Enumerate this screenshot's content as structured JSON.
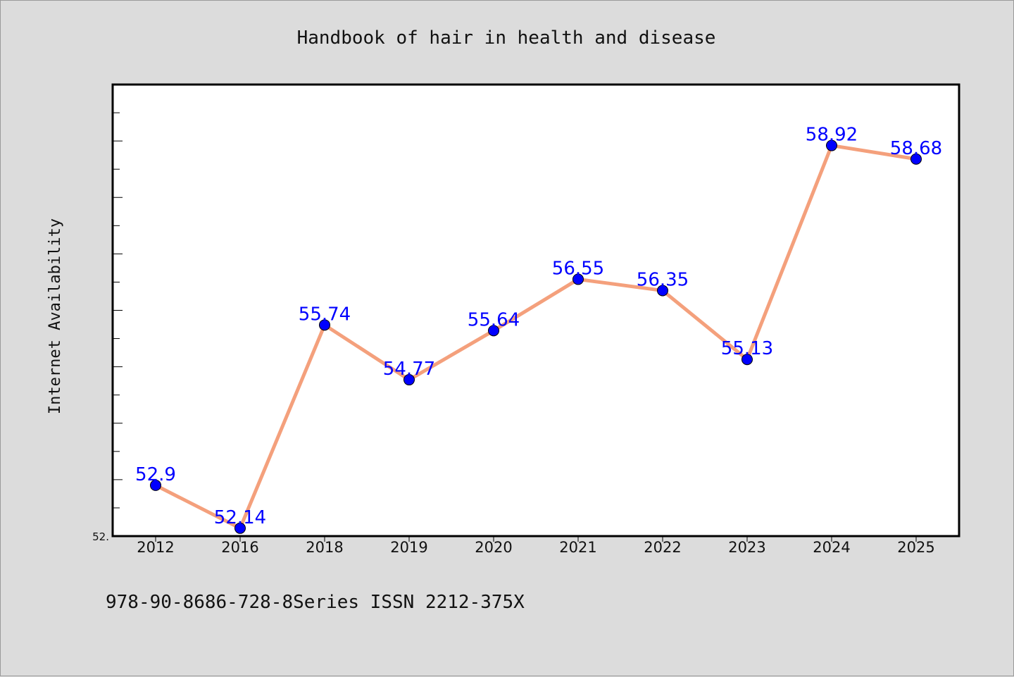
{
  "chart_data": {
    "type": "line",
    "title": "Handbook of hair in health and disease",
    "xlabel": "",
    "ylabel": "Internet Availability",
    "categories": [
      "2012",
      "2016",
      "2018",
      "2019",
      "2020",
      "2021",
      "2022",
      "2023",
      "2024",
      "2025"
    ],
    "series": [
      {
        "values": [
          52.9,
          52.14,
          55.74,
          54.77,
          55.64,
          56.55,
          56.35,
          55.13,
          58.92,
          58.68
        ],
        "labels": [
          "52.9",
          "52.14",
          "55.74",
          "54.77",
          "55.64",
          "56.55",
          "56.35",
          "55.13",
          "58.92",
          "58.68"
        ],
        "line_color": "#f4a07c",
        "marker_color": "#0000ff"
      }
    ],
    "ylim": [
      52.0,
      60.0
    ],
    "ytick_labels": [
      "52."
    ],
    "grid": false,
    "legend": "none"
  },
  "footer": {
    "text": "978-90-8686-728-8Series ISSN 2212-375X"
  }
}
